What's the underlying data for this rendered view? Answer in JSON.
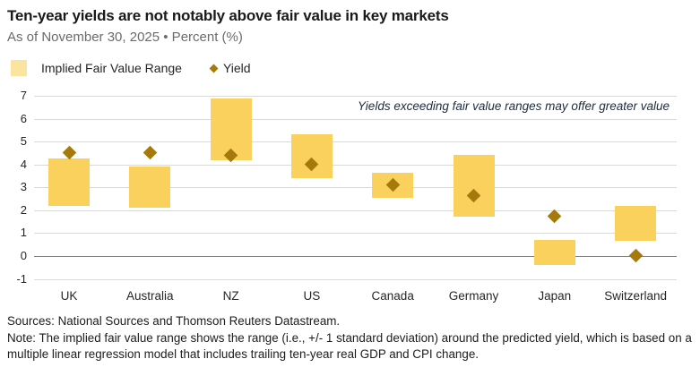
{
  "header": {
    "title": "Ten-year yields are not notably above fair value in key markets",
    "subtitle": "As of November 30, 2025 • Percent (%)"
  },
  "legend": {
    "range_label": "Implied Fair Value Range",
    "yield_label": "Yield"
  },
  "footer": {
    "sources": "Sources: National Sources and Thomson Reuters Datastream.",
    "note": "Note: The implied fair value range shows the range (i.e., +/- 1 standard deviation) around the predicted yield, which is based on a multiple linear regression model that includes trailing ten-year real GDP and CPI change."
  },
  "colors": {
    "bar": "#FBD15E",
    "legend_swatch": "#FBE3A0",
    "diamond": "#A5790C",
    "gridline": "#D9D9D9",
    "zero_line": "#808080"
  },
  "chart_data": {
    "type": "bar",
    "subtype": "floating-range-bars-with-diamond-markers",
    "title": "Ten-year yields are not notably above fair value in key markets",
    "annotation": "Yields exceeding fair value ranges may offer greater value",
    "categories": [
      "UK",
      "Australia",
      "NZ",
      "US",
      "Canada",
      "Germany",
      "Japan",
      "Switzerland"
    ],
    "series": [
      {
        "name": "Implied Fair Value Range",
        "type": "range",
        "low": [
          2.2,
          2.1,
          4.2,
          3.4,
          2.55,
          1.7,
          -0.4,
          0.65
        ],
        "high": [
          4.25,
          3.9,
          6.9,
          5.3,
          3.65,
          4.4,
          0.7,
          2.2
        ]
      },
      {
        "name": "Yield",
        "type": "scatter-diamond",
        "values": [
          4.5,
          4.5,
          4.4,
          4.0,
          3.1,
          2.65,
          1.75,
          0.0
        ]
      }
    ],
    "ylabel": "Percent (%)",
    "ylim": [
      -1,
      7
    ],
    "yticks": [
      7,
      6,
      5,
      4,
      3,
      2,
      1,
      0,
      -1
    ],
    "grid": true,
    "legend_position": "top-left"
  }
}
